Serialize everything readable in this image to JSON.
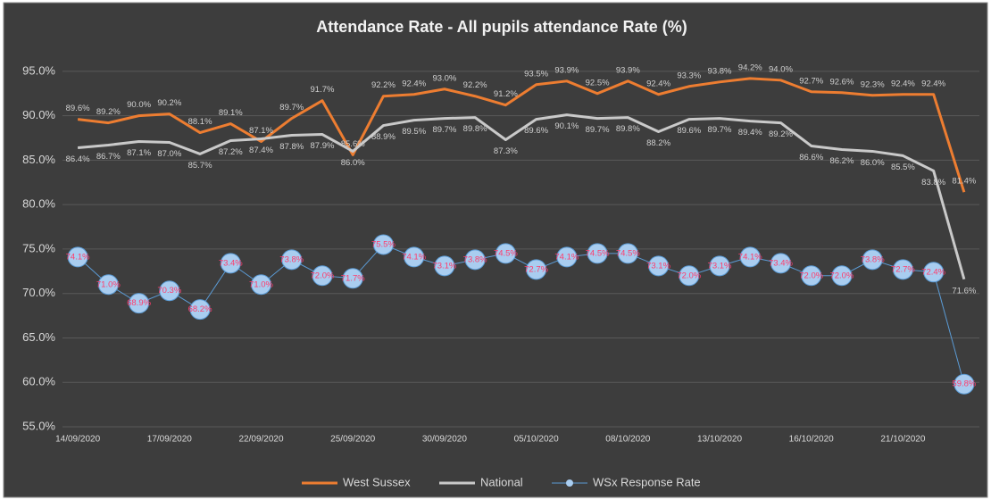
{
  "chart_data": {
    "type": "line",
    "title": "Attendance Rate - All pupils attendance Rate (%)",
    "categories": [
      "14/09/2020",
      null,
      null,
      "17/09/2020",
      null,
      null,
      "22/09/2020",
      null,
      null,
      "25/09/2020",
      null,
      null,
      "30/09/2020",
      null,
      null,
      "05/10/2020",
      null,
      null,
      "08/10/2020",
      null,
      null,
      "13/10/2020",
      null,
      null,
      "16/10/2020",
      null,
      null,
      "21/10/2020",
      null,
      null
    ],
    "series": [
      {
        "name": "West Sussex",
        "color": "#ed7d31",
        "marker": false,
        "label_position": "above",
        "values": [
          89.6,
          89.2,
          90.0,
          90.2,
          88.1,
          89.1,
          87.1,
          89.7,
          91.7,
          85.6,
          92.2,
          92.4,
          93.0,
          92.2,
          91.2,
          93.5,
          93.9,
          92.5,
          93.9,
          92.4,
          93.3,
          93.8,
          94.2,
          94.0,
          92.7,
          92.6,
          92.3,
          92.4,
          92.4,
          81.4
        ],
        "value_labels": [
          "89.6%",
          "89.2%",
          "90.0%",
          "90.2%",
          "88.1%",
          "89.1%",
          "87.1%",
          "89.7%",
          "91.7%",
          "85.6%",
          "92.2%",
          "92.4%",
          "93.0%",
          "92.2%",
          "91.2%",
          "93.5%",
          "93.9%",
          "92.5%",
          "93.9%",
          "92.4%",
          "93.3%",
          "93.8%",
          "94.2%",
          "94.0%",
          "92.7%",
          "92.6%",
          "92.3%",
          "92.4%",
          "92.4%",
          "81.4%"
        ]
      },
      {
        "name": "National",
        "color": "#c9c9c9",
        "marker": false,
        "label_position": "below",
        "values": [
          86.4,
          86.7,
          87.1,
          87.0,
          85.7,
          87.2,
          87.4,
          87.8,
          87.9,
          86.0,
          88.9,
          89.5,
          89.7,
          89.8,
          87.3,
          89.6,
          90.1,
          89.7,
          89.8,
          88.2,
          89.6,
          89.7,
          89.4,
          89.2,
          86.6,
          86.2,
          86.0,
          85.5,
          83.8,
          71.6
        ],
        "value_labels": [
          "86.4%",
          "86.7%",
          "87.1%",
          "87.0%",
          "85.7%",
          "87.2%",
          "87.4%",
          "87.8%",
          "87.9%",
          "86.0%",
          "88.9%",
          "89.5%",
          "89.7%",
          "89.8%",
          "87.3%",
          "89.6%",
          "90.1%",
          "89.7%",
          "89.8%",
          "88.2%",
          "89.6%",
          "89.7%",
          "89.4%",
          "89.2%",
          "86.6%",
          "86.2%",
          "86.0%",
          "85.5%",
          "83.8%",
          "71.6%"
        ]
      },
      {
        "name": "WSx Response Rate",
        "color": "#5b9bd5",
        "marker": true,
        "marker_color": "#a9cdf0",
        "label_color": "#ff3b6b",
        "label_position": "center",
        "values": [
          74.1,
          71.0,
          68.9,
          70.3,
          68.2,
          73.4,
          71.0,
          73.8,
          72.0,
          71.7,
          75.5,
          74.1,
          73.1,
          73.8,
          74.5,
          72.7,
          74.1,
          74.5,
          74.5,
          73.1,
          72.0,
          73.1,
          74.1,
          73.4,
          72.0,
          72.0,
          73.8,
          72.7,
          72.4,
          59.8
        ],
        "value_labels": [
          "74.1%",
          "71.0%",
          "68.9%",
          "70.3%",
          "68.2%",
          "73.4%",
          "71.0%",
          "73.8%",
          "72.0%",
          "71.7%",
          "75.5%",
          "74.1%",
          "73.1%",
          "73.8%",
          "74.5%",
          "72.7%",
          "74.1%",
          "74.5%",
          "74.5%",
          "73.1%",
          "72.0%",
          "73.1%",
          "74.1%",
          "73.4%",
          "72.0%",
          "72.0%",
          "73.8%",
          "72.7%",
          "72.4%",
          "59.8%"
        ]
      }
    ],
    "ylim": [
      55,
      98
    ],
    "yticks": [
      {
        "value": 55,
        "label": "55.0%"
      },
      {
        "value": 60,
        "label": "60.0%"
      },
      {
        "value": 65,
        "label": "65.0%"
      },
      {
        "value": 70,
        "label": "70.0%"
      },
      {
        "value": 75,
        "label": "75.0%"
      },
      {
        "value": 80,
        "label": "80.0%"
      },
      {
        "value": 85,
        "label": "85.0%"
      },
      {
        "value": 90,
        "label": "90.0%"
      },
      {
        "value": 95,
        "label": "95.0%"
      }
    ],
    "grid": true,
    "legend": "bottom"
  }
}
